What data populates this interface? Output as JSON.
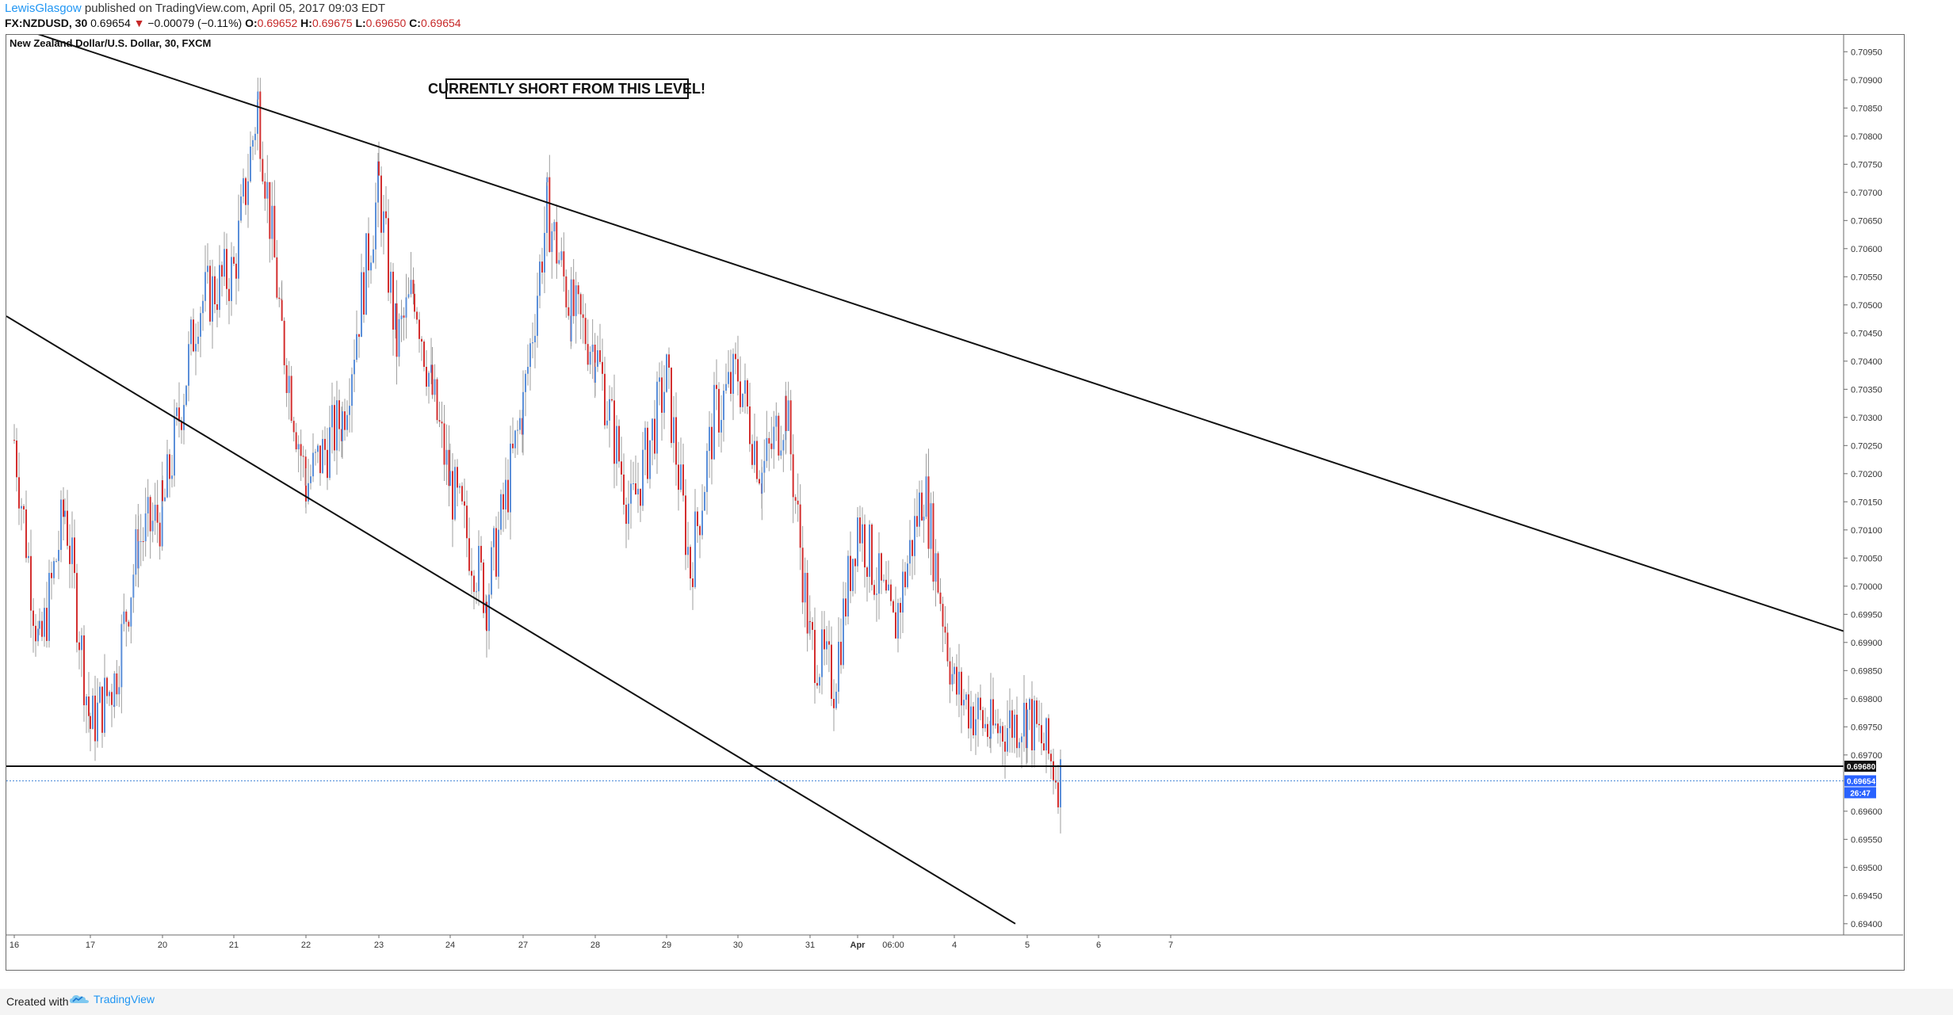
{
  "header": {
    "username": "LewisGlasgow",
    "published_text": "published on TradingView.com, April 05, 2017 09:03 EDT",
    "symbol": "FX:NZDUSD, 30",
    "last": "0.69654",
    "change_arrow": "▼",
    "change": "−0.00079 (−0.11%)",
    "open_label": "O:",
    "open": "0.69652",
    "high_label": "H:",
    "high": "0.69675",
    "low_label": "L:",
    "low": "0.69650",
    "close_label": "C:",
    "close": "0.69654"
  },
  "footer": {
    "created_with": "Created with",
    "brand": "TradingView",
    "logo_icon": "tradingview-cloud-icon"
  },
  "colors": {
    "up": "#5b8fd9",
    "down": "#d32f2f",
    "wick": "#9e9e9e",
    "price_tag": "#2962ff"
  },
  "chart_data": {
    "type": "candlestick",
    "title": "New Zealand Dollar/U.S. Dollar, 30, FXCM",
    "annotation": "CURRENTLY SHORT FROM THIS LEVEL!",
    "ylim": [
      0.6938,
      0.7098
    ],
    "y_ticks": [
      "0.70950",
      "0.70900",
      "0.70850",
      "0.70800",
      "0.70750",
      "0.70700",
      "0.70650",
      "0.70600",
      "0.70550",
      "0.70500",
      "0.70450",
      "0.70400",
      "0.70350",
      "0.70300",
      "0.70250",
      "0.70200",
      "0.70150",
      "0.70100",
      "0.70050",
      "0.70000",
      "0.69950",
      "0.69900",
      "0.69850",
      "0.69800",
      "0.69750",
      "0.69700",
      "0.69600",
      "0.69550",
      "0.69500",
      "0.69450",
      "0.69400"
    ],
    "x_labels": [
      "16",
      "17",
      "20",
      "21",
      "22",
      "23",
      "24",
      "27",
      "28",
      "29",
      "30",
      "31",
      "Apr",
      "06:00",
      "4",
      "5",
      "6",
      "7"
    ],
    "horizontal_level": {
      "value": 0.6968,
      "label": "0.69680"
    },
    "last_price": {
      "value": 0.69654,
      "label": "0.69654",
      "countdown": "26:47"
    },
    "trendlines": [
      {
        "name": "channel-top",
        "points": [
          [
            "16",
            0.71
          ],
          [
            "7",
            0.6992
          ]
        ]
      },
      {
        "name": "channel-bottom",
        "points": [
          [
            "16",
            0.7048
          ],
          [
            "5",
            0.694
          ]
        ]
      }
    ],
    "close_path_anchors": [
      [
        "16",
        0.7026
      ],
      [
        "16",
        0.6988
      ],
      [
        "16",
        0.7014
      ],
      [
        "17",
        0.6975
      ],
      [
        "17",
        0.6983
      ],
      [
        "17",
        0.7008
      ],
      [
        "20",
        0.7013
      ],
      [
        "20",
        0.705
      ],
      [
        "21",
        0.7056
      ],
      [
        "21",
        0.7086
      ],
      [
        "21",
        0.7045
      ],
      [
        "22",
        0.7018
      ],
      [
        "22",
        0.703
      ],
      [
        "23",
        0.7071
      ],
      [
        "23",
        0.7043
      ],
      [
        "23",
        0.7053
      ],
      [
        "23",
        0.7034
      ],
      [
        "24",
        0.7018
      ],
      [
        "24",
        0.6998
      ],
      [
        "27",
        0.7032
      ],
      [
        "27",
        0.7067
      ],
      [
        "27",
        0.7049
      ],
      [
        "28",
        0.7042
      ],
      [
        "28",
        0.7013
      ],
      [
        "29",
        0.7037
      ],
      [
        "29",
        0.7003
      ],
      [
        "29",
        0.703
      ],
      [
        "30",
        0.7038
      ],
      [
        "30",
        0.702
      ],
      [
        "30",
        0.7032
      ],
      [
        "31",
        0.699
      ],
      [
        "31",
        0.6983
      ],
      [
        "Apr",
        0.7012
      ],
      [
        "06:00",
        0.6992
      ],
      [
        "06:00",
        0.7018
      ],
      [
        "4",
        0.6982
      ],
      [
        "4",
        0.6974
      ],
      [
        "5",
        0.6977
      ],
      [
        "5",
        0.6965
      ]
    ]
  }
}
